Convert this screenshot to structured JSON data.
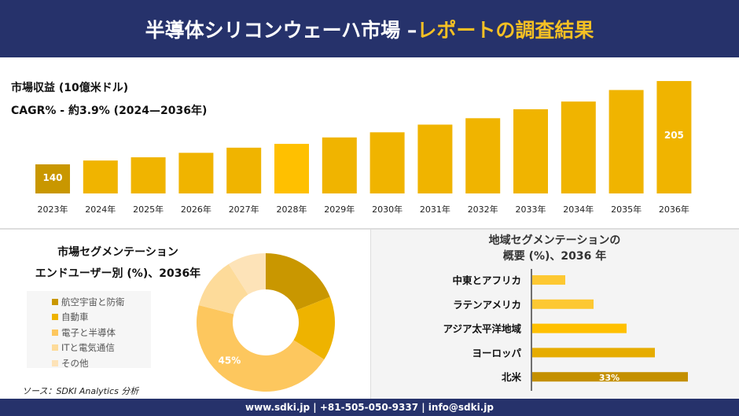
{
  "header": {
    "title_main": "半導体シリコンウェーハ市場 –",
    "title_highlight": "レポートの調査結果"
  },
  "revenue_label": "市場収益 (10億米ドル)",
  "cagr_label": "CAGR% - 約3.9% (2024—2036年)",
  "segment": {
    "title_line1": "市場セグメンテーション",
    "title_line2": "エンドユーザー別 (%)、2036年"
  },
  "region": {
    "title_line1": "地域セグメンテーションの",
    "title_line2": "概要 (%)、2036 年"
  },
  "source": "ソース：SDKI Analytics 分析",
  "footer": "www.sdki.jp | +81-505-050-9337 | info@sdki.jp",
  "colors": {
    "navy": "#26326b",
    "gold": "#f0b400",
    "dark_gold": "#c99700",
    "bright_gold": "#ffc000"
  },
  "chart_data": [
    {
      "type": "bar",
      "categories": [
        "2023年",
        "2024年",
        "2025年",
        "2026年",
        "2027年",
        "2028年",
        "2029年",
        "2030年",
        "2031年",
        "2032年",
        "2033年",
        "2034年",
        "2035年",
        "2036年"
      ],
      "values": [
        140,
        143,
        145.5,
        149,
        153,
        156,
        161,
        165,
        171,
        176,
        183,
        189,
        198,
        205
      ],
      "data_labels": {
        "0": "140",
        "13": "205"
      },
      "ylabel": "市場収益 (10億米ドル)",
      "grid": false
    },
    {
      "type": "pie",
      "donut": true,
      "title": "市場セグメンテーション エンドユーザー別 (%)、2036年",
      "slices": [
        {
          "name": "航空宇宙と防衛",
          "value": 19,
          "color": "#c99700"
        },
        {
          "name": "自動車",
          "value": 15,
          "color": "#eeb300"
        },
        {
          "name": "電子と半導体",
          "value": 45,
          "color": "#fdc75e",
          "label": "45%"
        },
        {
          "name": "ITと電気通信",
          "value": 12,
          "color": "#fddb9a"
        },
        {
          "name": "その他",
          "value": 9,
          "color": "#fde3b8"
        }
      ],
      "legend": "left"
    },
    {
      "type": "bar",
      "orientation": "horizontal",
      "title": "地域セグメンテーションの 概要 (%)、2036 年",
      "categories": [
        "中東とアフリカ",
        "ラテンアメリカ",
        "アジア太平洋地域",
        "ヨーロッパ",
        "北米"
      ],
      "values": [
        7,
        13,
        20,
        26,
        33
      ],
      "colors": [
        "#fdc832",
        "#fdc832",
        "#ffc000",
        "#e6ac00",
        "#c49000"
      ],
      "data_labels": {
        "4": "33%"
      }
    }
  ]
}
